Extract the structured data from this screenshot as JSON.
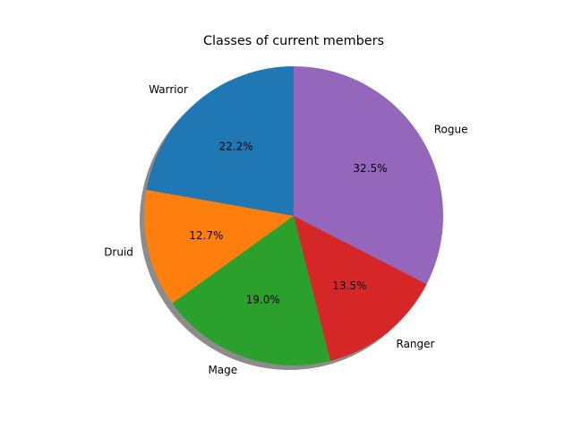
{
  "chart_data": {
    "type": "pie",
    "title": "Classes of current members",
    "categories": [
      "Warrior",
      "Druid",
      "Mage",
      "Ranger",
      "Rogue"
    ],
    "values": [
      22.2,
      12.7,
      19.0,
      13.5,
      32.5
    ],
    "percent_labels": [
      "22.2%",
      "12.7%",
      "19.0%",
      "13.5%",
      "32.5%"
    ],
    "colors": [
      "#1f77b4",
      "#ff7f0e",
      "#2ca02c",
      "#d62728",
      "#9467bd"
    ],
    "start_angle_deg": 90,
    "direction": "counterclockwise",
    "shadow": true
  }
}
